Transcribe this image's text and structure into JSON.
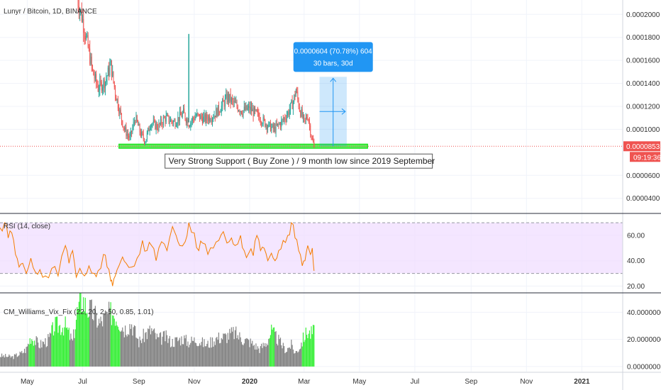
{
  "chart_data": [
    {
      "type": "candlestick",
      "title": "Lunyr / Bitcoin, 1D, BINANCE",
      "x_axis_labels": [
        "May",
        "Jul",
        "Sep",
        "Nov",
        "2020",
        "Mar",
        "May",
        "Jul",
        "Sep",
        "Nov",
        "2021"
      ],
      "y_axis_labels": [
        "0.0002000",
        "0.0001800",
        "0.0001600",
        "0.0001400",
        "0.0001200",
        "0.0001000",
        "0.0000600",
        "0.0000400"
      ],
      "ylim": [
        2.75e-05,
        0.0002125
      ],
      "last_price": "0.0000853",
      "last_price_value": 8.53e-05,
      "countdown": "09:19:36",
      "price_path": [
        [
          "2019-06-25",
          0.000215
        ],
        [
          "2019-07-01",
          0.000195
        ],
        [
          "2019-07-06",
          0.000175
        ],
        [
          "2019-07-12",
          0.00015
        ],
        [
          "2019-07-18",
          0.000136
        ],
        [
          "2019-07-26",
          0.000142
        ],
        [
          "2019-08-01",
          0.000156
        ],
        [
          "2019-08-06",
          0.000132
        ],
        [
          "2019-08-11",
          0.000115
        ],
        [
          "2019-08-16",
          0.0001
        ],
        [
          "2019-08-22",
          9.2e-05
        ],
        [
          "2019-08-28",
          0.00011
        ],
        [
          "2019-09-03",
          9.6e-05
        ],
        [
          "2019-09-08",
          9e-05
        ],
        [
          "2019-09-14",
          0.000106
        ],
        [
          "2019-09-22",
          0.000102
        ],
        [
          "2019-09-30",
          0.00011
        ],
        [
          "2019-10-10",
          0.000106
        ],
        [
          "2019-10-20",
          0.000114
        ],
        [
          "2019-10-26",
          0.000105
        ],
        [
          "2019-11-03",
          0.000112
        ],
        [
          "2019-11-12",
          0.000109
        ],
        [
          "2019-11-22",
          0.000112
        ],
        [
          "2019-12-01",
          0.00012
        ],
        [
          "2019-12-08",
          0.000128
        ],
        [
          "2019-12-15",
          0.000122
        ],
        [
          "2019-12-24",
          0.000116
        ],
        [
          "2020-01-01",
          0.000118
        ],
        [
          "2020-01-10",
          0.000112
        ],
        [
          "2020-01-20",
          0.000104
        ],
        [
          "2020-01-28",
          0.0001
        ],
        [
          "2020-02-05",
          0.000106
        ],
        [
          "2020-02-12",
          0.000114
        ],
        [
          "2020-02-18",
          0.000124
        ],
        [
          "2020-02-21",
          0.000134
        ],
        [
          "2020-02-25",
          0.000118
        ],
        [
          "2020-03-01",
          0.000106
        ],
        [
          "2020-03-05",
          0.000112
        ],
        [
          "2020-03-08",
          9.9e-05
        ],
        [
          "2020-03-10",
          9e-05
        ],
        [
          "2020-03-12",
          8.53e-05
        ]
      ],
      "annotations": {
        "support_zone": {
          "label": "Very Strong Support ( Buy Zone )   / 9 month low since 2019 September",
          "color": "#00e000",
          "from": "2019-08-10",
          "to": "2020-05-10",
          "price_low": 8.35e-05,
          "price_high": 8.72e-05
        },
        "measure": {
          "line1": "0.0000604 (70.78%) 604",
          "line2": "30 bars, 30d",
          "color": "#2196f3",
          "from": "2020-03-18",
          "to": "2020-04-17",
          "price_low": 8.53e-05,
          "price_high": 0.0001457
        },
        "spike": {
          "date": "2019-10-26",
          "high": 0.000183
        }
      }
    },
    {
      "type": "line",
      "title": "RSI (14, close)",
      "y_axis_labels": [
        "60.00",
        "40.00",
        "20.00"
      ],
      "ylim": [
        15.2,
        76.8
      ],
      "upper_band": 70,
      "lower_band": 30,
      "line_color": "#f57c00",
      "band_color": "#f0dcff",
      "series": [
        {
          "values": [
            [
              "2019-04-01",
              66
            ],
            [
              "2019-04-06",
              70
            ],
            [
              "2019-04-10",
              58
            ],
            [
              "2019-04-14",
              62
            ],
            [
              "2019-04-18",
              45
            ],
            [
              "2019-04-22",
              35
            ],
            [
              "2019-04-26",
              38
            ],
            [
              "2019-04-30",
              30
            ],
            [
              "2019-05-05",
              42
            ],
            [
              "2019-05-10",
              31
            ],
            [
              "2019-05-15",
              33
            ],
            [
              "2019-05-21",
              28
            ],
            [
              "2019-05-28",
              34
            ],
            [
              "2019-06-04",
              28
            ],
            [
              "2019-06-12",
              52
            ],
            [
              "2019-06-16",
              38
            ],
            [
              "2019-06-20",
              48
            ],
            [
              "2019-06-24",
              27
            ],
            [
              "2019-06-28",
              34
            ],
            [
              "2019-07-03",
              28
            ],
            [
              "2019-07-08",
              36
            ],
            [
              "2019-07-14",
              30
            ],
            [
              "2019-07-18",
              32
            ],
            [
              "2019-07-24",
              45
            ],
            [
              "2019-07-28",
              35
            ],
            [
              "2019-08-01",
              24
            ],
            [
              "2019-08-03",
              20
            ],
            [
              "2019-08-06",
              28
            ],
            [
              "2019-08-10",
              36
            ],
            [
              "2019-08-14",
              43
            ],
            [
              "2019-08-18",
              38
            ],
            [
              "2019-08-24",
              35
            ],
            [
              "2019-08-30",
              42
            ],
            [
              "2019-09-05",
              56
            ],
            [
              "2019-09-10",
              48
            ],
            [
              "2019-09-15",
              52
            ],
            [
              "2019-09-20",
              40
            ],
            [
              "2019-09-26",
              55
            ],
            [
              "2019-10-02",
              48
            ],
            [
              "2019-10-08",
              67
            ],
            [
              "2019-10-12",
              60
            ],
            [
              "2019-10-16",
              52
            ],
            [
              "2019-10-22",
              55
            ],
            [
              "2019-10-26",
              70
            ],
            [
              "2019-11-01",
              62
            ],
            [
              "2019-11-06",
              48
            ],
            [
              "2019-11-10",
              54
            ],
            [
              "2019-11-16",
              45
            ],
            [
              "2019-11-22",
              50
            ],
            [
              "2019-11-28",
              56
            ],
            [
              "2019-12-03",
              63
            ],
            [
              "2019-12-07",
              54
            ],
            [
              "2019-12-12",
              58
            ],
            [
              "2019-12-16",
              52
            ],
            [
              "2019-12-22",
              60
            ],
            [
              "2019-12-26",
              48
            ],
            [
              "2019-12-31",
              46
            ],
            [
              "2020-01-05",
              44
            ],
            [
              "2020-01-09",
              60
            ],
            [
              "2020-01-13",
              48
            ],
            [
              "2020-01-17",
              50
            ],
            [
              "2020-01-21",
              40
            ],
            [
              "2020-01-25",
              46
            ],
            [
              "2020-01-29",
              40
            ],
            [
              "2020-02-02",
              48
            ],
            [
              "2020-02-07",
              56
            ],
            [
              "2020-02-12",
              60
            ],
            [
              "2020-02-16",
              70
            ],
            [
              "2020-02-20",
              58
            ],
            [
              "2020-02-24",
              48
            ],
            [
              "2020-02-28",
              36
            ],
            [
              "2020-03-02",
              40
            ],
            [
              "2020-03-05",
              52
            ],
            [
              "2020-03-08",
              45
            ],
            [
              "2020-03-10",
              50
            ],
            [
              "2020-03-12",
              32
            ]
          ]
        }
      ]
    },
    {
      "type": "bar",
      "title": "CM_Williams_Vix_Fix (22, 20, 2, 50, 0.85, 1.01)",
      "y_axis_labels": [
        "40.0000000",
        "20.0000000",
        "0.0000000"
      ],
      "ylim": [
        -3.7,
        53.8
      ],
      "colors": {
        "normal": "#808080",
        "alert": "#33ee33"
      },
      "series": [
        {
          "name": "",
          "values": [
            [
              "2019-04-01",
              8,
              0
            ],
            [
              "2019-04-15",
              7,
              0
            ],
            [
              "2019-04-25",
              10,
              0
            ],
            [
              "2019-04-30",
              13,
              0
            ],
            [
              "2019-05-05",
              22,
              1
            ],
            [
              "2019-05-15",
              16,
              0
            ],
            [
              "2019-05-25",
              20,
              0
            ],
            [
              "2019-05-31",
              30,
              1
            ],
            [
              "2019-06-12",
              30,
              1
            ],
            [
              "2019-06-20",
              18,
              0
            ],
            [
              "2019-06-25",
              40,
              1
            ],
            [
              "2019-07-01",
              50,
              1
            ],
            [
              "2019-07-05",
              44,
              1
            ],
            [
              "2019-07-12",
              40,
              0
            ],
            [
              "2019-07-20",
              32,
              0
            ],
            [
              "2019-07-28",
              38,
              0
            ],
            [
              "2019-08-04",
              40,
              1
            ],
            [
              "2019-08-08",
              36,
              1
            ],
            [
              "2019-08-16",
              28,
              0
            ],
            [
              "2019-08-24",
              32,
              0
            ],
            [
              "2019-09-01",
              18,
              0
            ],
            [
              "2019-09-08",
              24,
              0
            ],
            [
              "2019-09-15",
              27,
              0
            ],
            [
              "2019-09-22",
              20,
              0
            ],
            [
              "2019-09-30",
              22,
              0
            ],
            [
              "2019-10-07",
              18,
              0
            ],
            [
              "2019-10-20",
              21,
              0
            ],
            [
              "2019-10-25",
              18,
              0
            ],
            [
              "2019-11-03",
              20,
              0
            ],
            [
              "2019-11-15",
              16,
              0
            ],
            [
              "2019-11-25",
              21,
              0
            ],
            [
              "2019-12-05",
              22,
              0
            ],
            [
              "2019-12-15",
              25,
              0
            ],
            [
              "2019-12-25",
              20,
              0
            ],
            [
              "2020-01-02",
              18,
              0
            ],
            [
              "2020-01-12",
              13,
              0
            ],
            [
              "2020-01-20",
              18,
              0
            ],
            [
              "2020-01-25",
              26,
              1
            ],
            [
              "2020-02-01",
              20,
              0
            ],
            [
              "2020-02-10",
              12,
              0
            ],
            [
              "2020-02-16",
              16,
              0
            ],
            [
              "2020-02-20",
              10,
              0
            ],
            [
              "2020-02-25",
              14,
              0
            ],
            [
              "2020-03-01",
              22,
              1
            ],
            [
              "2020-03-05",
              26,
              1
            ],
            [
              "2020-03-08",
              24,
              1
            ],
            [
              "2020-03-12",
              26,
              1
            ]
          ]
        }
      ]
    }
  ]
}
